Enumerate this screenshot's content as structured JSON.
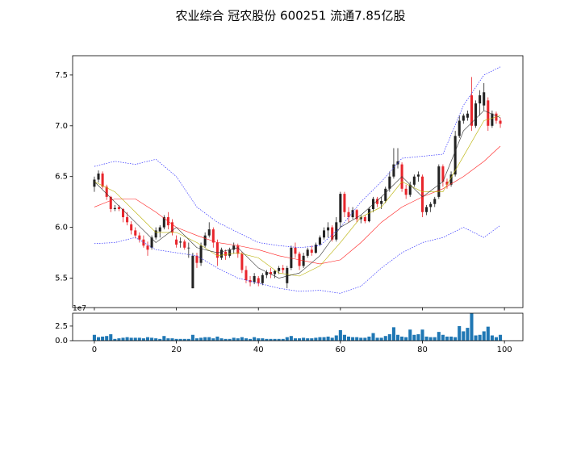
{
  "chart_data": [
    {
      "type": "candlestick",
      "title": "农业综合  冠农股份  600251  流通7.85亿股",
      "xlim": [
        -5.3,
        104.5
      ],
      "xticks": [
        0,
        20,
        40,
        60,
        80,
        100
      ],
      "ylim": [
        5.21,
        7.69
      ],
      "yticks": [
        5.5,
        {
          "value": 6,
          "label": "6.0"
        },
        6.5,
        {
          "value": 7,
          "label": "7.0"
        },
        7.5
      ],
      "up_color": "#222222",
      "down_color": "#e8262c",
      "open": [
        6.4,
        6.47,
        6.53,
        6.4,
        6.3,
        6.18,
        6.2,
        6.18,
        6.1,
        6.03,
        5.97,
        5.92,
        5.88,
        5.82,
        5.8,
        5.9,
        5.96,
        6.0,
        6.1,
        6.05,
        5.88,
        5.85,
        5.86,
        5.8,
        5.4,
        5.72,
        5.65,
        5.82,
        5.92,
        5.98,
        5.85,
        5.7,
        5.76,
        5.72,
        5.78,
        5.82,
        5.74,
        5.58,
        5.48,
        5.46,
        5.5,
        5.45,
        5.53,
        5.56,
        5.54,
        5.57,
        5.6,
        5.45,
        5.6,
        5.8,
        5.74,
        5.62,
        5.72,
        5.78,
        5.75,
        5.83,
        5.9,
        5.97,
        6.0,
        5.88,
        6.05,
        6.33,
        6.15,
        6.1,
        6.17,
        6.08,
        6.1,
        6.06,
        6.18,
        6.28,
        6.23,
        6.26,
        6.38,
        6.5,
        6.62,
        6.62,
        6.38,
        6.32,
        6.42,
        6.5,
        6.5,
        6.15,
        6.2,
        6.23,
        6.3,
        6.6,
        6.45,
        6.42,
        6.52,
        6.9,
        7.05,
        7.08,
        7.3,
        7.0,
        7.22,
        7.2,
        7.25,
        7.0,
        7.12,
        7.05
      ],
      "high": [
        6.5,
        6.56,
        6.55,
        6.42,
        6.31,
        6.22,
        6.22,
        6.19,
        6.15,
        6.06,
        6.0,
        5.95,
        5.92,
        5.86,
        5.92,
        6.0,
        6.02,
        6.12,
        6.15,
        6.08,
        5.92,
        5.9,
        5.88,
        5.85,
        5.75,
        5.75,
        5.85,
        5.95,
        6.05,
        6.0,
        5.88,
        5.8,
        5.78,
        5.8,
        5.85,
        5.84,
        5.76,
        5.62,
        5.52,
        5.55,
        5.52,
        5.55,
        5.58,
        5.6,
        5.58,
        5.62,
        5.63,
        5.62,
        5.82,
        5.85,
        5.76,
        5.75,
        5.8,
        5.82,
        5.85,
        5.92,
        6.0,
        6.05,
        6.02,
        6.1,
        6.35,
        6.35,
        6.2,
        6.2,
        6.18,
        6.12,
        6.12,
        6.2,
        6.3,
        6.3,
        6.3,
        6.4,
        6.55,
        6.78,
        6.78,
        6.64,
        6.42,
        6.45,
        6.52,
        6.55,
        6.52,
        6.22,
        6.25,
        6.3,
        6.62,
        6.62,
        6.48,
        6.55,
        6.95,
        7.1,
        7.12,
        7.15,
        7.48,
        7.25,
        7.35,
        7.42,
        7.28,
        7.15,
        7.14,
        7.08
      ],
      "low": [
        6.35,
        6.44,
        6.38,
        6.27,
        6.15,
        6.16,
        6.16,
        6.05,
        6.02,
        5.93,
        5.89,
        5.85,
        5.8,
        5.72,
        5.78,
        5.88,
        5.9,
        5.98,
        5.98,
        5.92,
        5.8,
        5.8,
        5.78,
        5.7,
        5.4,
        5.6,
        5.62,
        5.8,
        5.9,
        5.8,
        5.62,
        5.68,
        5.68,
        5.7,
        5.74,
        5.7,
        5.55,
        5.45,
        5.42,
        5.44,
        5.42,
        5.43,
        5.5,
        5.5,
        5.5,
        5.54,
        5.55,
        5.4,
        5.58,
        5.7,
        5.58,
        5.6,
        5.7,
        5.72,
        5.74,
        5.82,
        5.88,
        5.9,
        5.86,
        5.86,
        6.0,
        6.1,
        6.05,
        6.08,
        6.05,
        6.04,
        6.04,
        6.05,
        6.15,
        6.2,
        6.18,
        6.24,
        6.35,
        6.48,
        6.58,
        6.35,
        6.28,
        6.3,
        6.4,
        6.45,
        6.1,
        6.12,
        6.15,
        6.2,
        6.28,
        6.4,
        6.38,
        6.4,
        6.5,
        6.88,
        7.02,
        7.05,
        6.95,
        6.98,
        7.1,
        7.15,
        6.95,
        6.98,
        7.02,
        6.98
      ],
      "close": [
        6.47,
        6.53,
        6.4,
        6.3,
        6.18,
        6.19,
        6.18,
        6.1,
        6.05,
        5.97,
        5.92,
        5.88,
        5.82,
        5.78,
        5.9,
        5.97,
        6.0,
        6.1,
        6.02,
        5.95,
        5.83,
        5.86,
        5.8,
        5.8,
        5.72,
        5.65,
        5.82,
        5.92,
        5.98,
        5.85,
        5.7,
        5.78,
        5.72,
        5.78,
        5.82,
        5.74,
        5.58,
        5.48,
        5.46,
        5.52,
        5.45,
        5.53,
        5.56,
        5.54,
        5.57,
        5.6,
        5.58,
        5.6,
        5.8,
        5.74,
        5.62,
        5.72,
        5.78,
        5.75,
        5.83,
        5.9,
        5.97,
        6.0,
        5.88,
        6.05,
        6.33,
        6.15,
        6.1,
        6.17,
        6.08,
        6.1,
        6.06,
        6.18,
        6.28,
        6.23,
        6.26,
        6.38,
        6.5,
        6.62,
        6.65,
        6.38,
        6.32,
        6.42,
        6.5,
        6.52,
        6.15,
        6.2,
        6.23,
        6.28,
        6.6,
        6.45,
        6.42,
        6.52,
        6.9,
        7.05,
        7.1,
        7.12,
        7.0,
        7.22,
        7.3,
        7.33,
        7.0,
        7.12,
        7.05,
        7.02
      ],
      "line_x": [
        0,
        5,
        10,
        15,
        20,
        25,
        30,
        35,
        40,
        45,
        50,
        55,
        60,
        65,
        70,
        75,
        80,
        85,
        90,
        95,
        99
      ],
      "lines": [
        {
          "color": "#3030ff",
          "style": "dotted",
          "values": [
            6.6,
            6.65,
            6.62,
            6.67,
            6.5,
            6.2,
            6.05,
            5.95,
            5.85,
            5.82,
            5.8,
            5.82,
            6.0,
            6.25,
            6.45,
            6.68,
            6.7,
            6.72,
            7.2,
            7.5,
            7.58
          ]
        },
        {
          "color": "#3030ff",
          "style": "dotted",
          "values": [
            5.84,
            5.85,
            5.9,
            5.78,
            5.75,
            5.72,
            5.6,
            5.5,
            5.45,
            5.4,
            5.37,
            5.38,
            5.35,
            5.42,
            5.6,
            5.75,
            5.85,
            5.9,
            6.0,
            5.9,
            6.02
          ]
        },
        {
          "color": "#ff2020",
          "style": "solid",
          "values": [
            6.2,
            6.28,
            6.28,
            6.15,
            6.0,
            5.92,
            5.85,
            5.82,
            5.78,
            5.72,
            5.68,
            5.64,
            5.68,
            5.85,
            6.05,
            6.2,
            6.3,
            6.38,
            6.5,
            6.65,
            6.8
          ]
        },
        {
          "color": "#b8b000",
          "style": "solid",
          "values": [
            6.45,
            6.35,
            6.15,
            5.95,
            5.95,
            5.85,
            5.72,
            5.75,
            5.7,
            5.55,
            5.52,
            5.62,
            5.85,
            6.1,
            6.2,
            6.45,
            6.35,
            6.35,
            6.7,
            7.05,
            7.1
          ]
        },
        {
          "color": "#333333",
          "style": "solid",
          "values": [
            6.45,
            6.25,
            6.05,
            5.85,
            6.0,
            5.8,
            5.75,
            5.8,
            5.6,
            5.5,
            5.55,
            5.72,
            6.0,
            6.12,
            6.3,
            6.5,
            6.3,
            6.45,
            6.95,
            7.15,
            7.08
          ]
        }
      ]
    },
    {
      "type": "bar",
      "offset_label": "1e7",
      "xlim": [
        -5.3,
        104.5
      ],
      "xticks": [
        0,
        20,
        40,
        60,
        80,
        100
      ],
      "ylim": [
        0,
        4.7
      ],
      "yticks": [
        {
          "value": 0,
          "label": "0.0"
        },
        2.5
      ],
      "color": "#1f77b4",
      "values": [
        1.0,
        0.6,
        0.7,
        0.8,
        1.1,
        0.3,
        0.4,
        0.5,
        0.6,
        0.5,
        0.5,
        0.5,
        0.4,
        0.6,
        0.5,
        0.4,
        0.3,
        0.8,
        0.4,
        0.4,
        0.3,
        0.3,
        0.3,
        0.3,
        1.0,
        0.4,
        0.5,
        0.6,
        0.6,
        0.4,
        0.7,
        0.4,
        0.3,
        0.3,
        0.5,
        0.4,
        0.6,
        0.4,
        0.3,
        0.6,
        0.4,
        0.4,
        0.3,
        0.3,
        0.3,
        0.3,
        0.3,
        0.6,
        0.8,
        0.4,
        0.4,
        0.5,
        0.4,
        0.4,
        0.5,
        0.6,
        0.6,
        0.7,
        0.5,
        0.9,
        1.8,
        1.0,
        0.7,
        0.6,
        0.6,
        0.5,
        0.5,
        0.7,
        1.3,
        0.5,
        0.5,
        0.8,
        1.1,
        2.3,
        1.0,
        0.7,
        0.6,
        1.9,
        1.0,
        1.1,
        1.9,
        0.7,
        0.6,
        0.6,
        1.5,
        1.0,
        0.7,
        0.7,
        0.6,
        2.5,
        1.6,
        2.2,
        4.7,
        0.9,
        1.0,
        1.6,
        2.4,
        0.9,
        0.6,
        1.0
      ]
    }
  ]
}
